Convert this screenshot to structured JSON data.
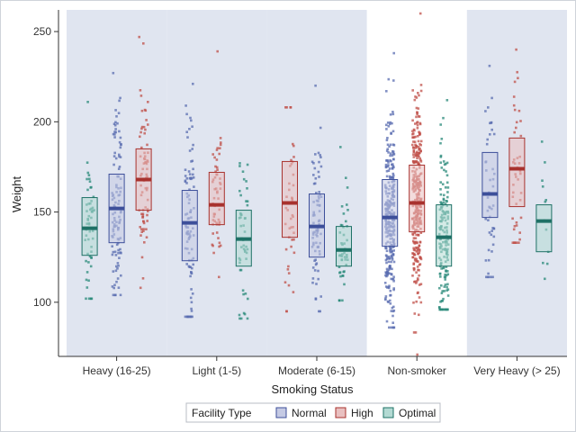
{
  "chart_data": {
    "type": "box+scatter",
    "xlabel": "Smoking Status",
    "ylabel": "Weight",
    "ylim": [
      70,
      262
    ],
    "yticks": [
      100,
      150,
      200,
      250
    ],
    "categories": [
      "Heavy (16-25)",
      "Light (1-5)",
      "Moderate (6-15)",
      "Non-smoker",
      "Very Heavy (> 25)"
    ],
    "shaded_bands": [
      true,
      true,
      true,
      false,
      true
    ],
    "group_title": "Facility Type",
    "groups": [
      "Optimal",
      "Normal",
      "High"
    ],
    "legend_order": [
      "Normal",
      "High",
      "Optimal"
    ],
    "colors": {
      "Normal": {
        "line": "#3d4f9a",
        "fill": "#c5cae4",
        "point": "#5a6cb0"
      },
      "High": {
        "line": "#a8322e",
        "fill": "#e9c0c0",
        "point": "#c0504a"
      },
      "Optimal": {
        "line": "#1e7166",
        "fill": "#b3dad3",
        "point": "#2a8a7a"
      },
      "band": "#e0e5f0"
    },
    "boxes": [
      {
        "category": "Heavy (16-25)",
        "group": "Optimal",
        "q1": 126,
        "median": 141,
        "q3": 158,
        "min": 102,
        "max": 211,
        "n": 55
      },
      {
        "category": "Heavy (16-25)",
        "group": "Normal",
        "q1": 133,
        "median": 152,
        "q3": 171,
        "min": 104,
        "max": 227,
        "n": 110
      },
      {
        "category": "Heavy (16-25)",
        "group": "High",
        "q1": 151,
        "median": 168,
        "q3": 185,
        "min": 108,
        "max": 247,
        "n": 75
      },
      {
        "category": "Light (1-5)",
        "group": "Normal",
        "q1": 123,
        "median": 144,
        "q3": 162,
        "min": 92,
        "max": 221,
        "n": 95
      },
      {
        "category": "Light (1-5)",
        "group": "High",
        "q1": 143,
        "median": 154,
        "q3": 172,
        "min": 114,
        "max": 239,
        "n": 55
      },
      {
        "category": "Light (1-5)",
        "group": "Optimal",
        "q1": 120,
        "median": 135,
        "q3": 151,
        "min": 91,
        "max": 177,
        "n": 48
      },
      {
        "category": "Moderate (6-15)",
        "group": "High",
        "q1": 136,
        "median": 155,
        "q3": 178,
        "min": 95,
        "max": 208,
        "n": 45
      },
      {
        "category": "Moderate (6-15)",
        "group": "Normal",
        "q1": 125,
        "median": 142,
        "q3": 160,
        "min": 95,
        "max": 220,
        "n": 80
      },
      {
        "category": "Moderate (6-15)",
        "group": "Optimal",
        "q1": 120,
        "median": 129,
        "q3": 142,
        "min": 101,
        "max": 186,
        "n": 45
      },
      {
        "category": "Non-smoker",
        "group": "Normal",
        "q1": 131,
        "median": 147,
        "q3": 168,
        "min": 86,
        "max": 238,
        "n": 320
      },
      {
        "category": "Non-smoker",
        "group": "High",
        "q1": 139,
        "median": 155,
        "q3": 176,
        "min": 71,
        "max": 260,
        "n": 330
      },
      {
        "category": "Non-smoker",
        "group": "Optimal",
        "q1": 120,
        "median": 136,
        "q3": 154,
        "min": 96,
        "max": 212,
        "n": 160
      },
      {
        "category": "Very Heavy (> 25)",
        "group": "Normal",
        "q1": 147,
        "median": 160,
        "q3": 183,
        "min": 114,
        "max": 231,
        "n": 48
      },
      {
        "category": "Very Heavy (> 25)",
        "group": "High",
        "q1": 153,
        "median": 174,
        "q3": 191,
        "min": 133,
        "max": 240,
        "n": 45
      },
      {
        "category": "Very Heavy (> 25)",
        "group": "Optimal",
        "q1": 128,
        "median": 145,
        "q3": 154,
        "min": 113,
        "max": 189,
        "n": 12
      }
    ]
  }
}
